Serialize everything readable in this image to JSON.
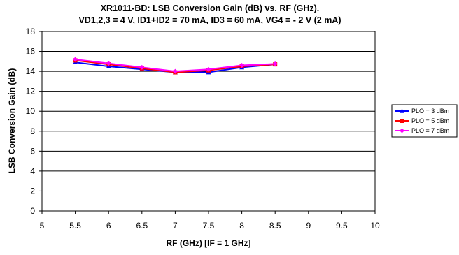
{
  "chart_data": {
    "type": "line",
    "title_line1": "XR1011-BD: LSB Conversion Gain (dB) vs. RF (GHz).",
    "title_line2": "VD1,2,3 = 4 V, ID1+ID2 = 70 mA, ID3 = 60 mA, VG4 = - 2 V (2 mA)",
    "xlabel": "RF (GHz) [IF = 1 GHz]",
    "ylabel": "LSB Conversion Gain (dB)",
    "xlim": [
      5,
      10
    ],
    "ylim": [
      0,
      18
    ],
    "x_ticks": [
      "5",
      "5.5",
      "6",
      "6.5",
      "7",
      "7.5",
      "8",
      "8.5",
      "9",
      "9.5",
      "10"
    ],
    "y_ticks": [
      "0",
      "2",
      "4",
      "6",
      "8",
      "10",
      "12",
      "14",
      "16",
      "18"
    ],
    "grid": "horizontal",
    "legend_position": "right",
    "x": [
      5.5,
      6,
      6.5,
      7,
      7.5,
      8,
      8.5
    ],
    "series": [
      {
        "name": "PLO = 3 dBm",
        "color": "#0000ff",
        "marker": "triangle",
        "values": [
          14.9,
          14.5,
          14.2,
          13.9,
          13.9,
          14.4,
          14.7
        ]
      },
      {
        "name": "PLO = 5 dBm",
        "color": "#ff0000",
        "marker": "square",
        "values": [
          15.1,
          14.7,
          14.3,
          13.9,
          14.1,
          14.5,
          14.7
        ]
      },
      {
        "name": "PLO = 7 dBm",
        "color": "#ff00ff",
        "marker": "diamond",
        "values": [
          15.2,
          14.8,
          14.4,
          14.0,
          14.2,
          14.6,
          14.75
        ]
      }
    ]
  }
}
